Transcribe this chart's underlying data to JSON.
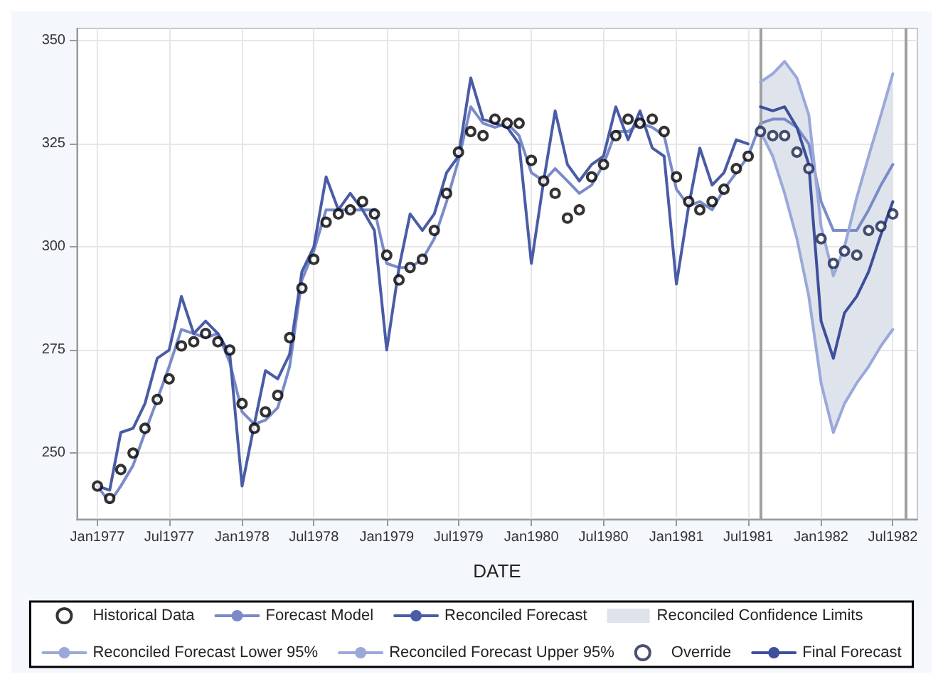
{
  "chart_data": {
    "type": "line",
    "xlabel": "DATE",
    "x": [
      "1977-01",
      "1977-02",
      "1977-03",
      "1977-04",
      "1977-05",
      "1977-06",
      "1977-07",
      "1977-08",
      "1977-09",
      "1977-10",
      "1977-11",
      "1977-12",
      "1978-01",
      "1978-02",
      "1978-03",
      "1978-04",
      "1978-05",
      "1978-06",
      "1978-07",
      "1978-08",
      "1978-09",
      "1978-10",
      "1978-11",
      "1978-12",
      "1979-01",
      "1979-02",
      "1979-03",
      "1979-04",
      "1979-05",
      "1979-06",
      "1979-07",
      "1979-08",
      "1979-09",
      "1979-10",
      "1979-11",
      "1979-12",
      "1980-01",
      "1980-02",
      "1980-03",
      "1980-04",
      "1980-05",
      "1980-06",
      "1980-07",
      "1980-08",
      "1980-09",
      "1980-10",
      "1980-11",
      "1980-12",
      "1981-01",
      "1981-02",
      "1981-03",
      "1981-04",
      "1981-05",
      "1981-06",
      "1981-07",
      "1981-08",
      "1981-09",
      "1981-10",
      "1981-11",
      "1981-12",
      "1982-01",
      "1982-02",
      "1982-03",
      "1982-04",
      "1982-05",
      "1982-06",
      "1982-07"
    ],
    "series": [
      {
        "name": "Historical Data",
        "type": "scatter",
        "marker": "circle",
        "color": "#000000",
        "values": [
          242,
          239,
          246,
          250,
          256,
          263,
          268,
          276,
          277,
          279,
          277,
          275,
          262,
          256,
          260,
          264,
          278,
          290,
          297,
          306,
          308,
          309,
          311,
          308,
          298,
          292,
          295,
          297,
          304,
          313,
          323,
          328,
          327,
          331,
          330,
          330,
          321,
          316,
          313,
          307,
          309,
          317,
          320,
          327,
          331,
          330,
          331,
          328,
          317,
          311,
          309,
          311,
          314,
          319,
          322,
          null,
          null,
          null,
          null,
          null,
          null,
          null,
          null,
          null,
          null,
          null,
          null
        ]
      },
      {
        "name": "Forecast Model",
        "color": "#7a8bc9",
        "values": [
          242,
          238,
          242,
          247,
          255,
          263,
          271,
          280,
          279,
          278,
          279,
          272,
          260,
          257,
          258,
          261,
          271,
          292,
          299,
          309,
          309,
          309,
          309,
          309,
          296,
          295,
          295,
          297,
          302,
          311,
          321,
          334,
          330,
          329,
          330,
          327,
          318,
          316,
          319,
          316,
          313,
          315,
          320,
          328,
          328,
          330,
          329,
          327,
          314,
          310,
          311,
          309,
          314,
          318,
          322,
          330,
          331,
          331,
          329,
          325,
          311,
          304,
          304,
          304,
          309,
          315,
          320
        ]
      },
      {
        "name": "Reconciled Forecast",
        "color": "#4a5ca6",
        "values": [
          242,
          241,
          255,
          256,
          262,
          273,
          275,
          288,
          279,
          282,
          279,
          274,
          242,
          257,
          270,
          268,
          274,
          294,
          300,
          317,
          309,
          313,
          309,
          304,
          275,
          295,
          308,
          304,
          308,
          318,
          322,
          341,
          331,
          330,
          329,
          325,
          296,
          316,
          333,
          320,
          316,
          320,
          322,
          334,
          326,
          333,
          324,
          322,
          291,
          310,
          324,
          315,
          318,
          326,
          325,
          null,
          null,
          null,
          null,
          null,
          null,
          null,
          null,
          null,
          null,
          null,
          null
        ]
      },
      {
        "name": "Reconciled Confidence Limits",
        "type": "area",
        "color": "#dfe4ec",
        "x": [
          "1981-08",
          "1981-09",
          "1981-10",
          "1981-11",
          "1981-12",
          "1982-01",
          "1982-02",
          "1982-03",
          "1982-04",
          "1982-05",
          "1982-06",
          "1982-07"
        ],
        "values": [
          null,
          null,
          null,
          null,
          null,
          null,
          null,
          null,
          null,
          null,
          null,
          null
        ],
        "lower": [
          328,
          322,
          313,
          302,
          288,
          267,
          255,
          262,
          267,
          271,
          276,
          280
        ],
        "upper": [
          340,
          342,
          345,
          341,
          332,
          305,
          293,
          300,
          312,
          322,
          332,
          342
        ]
      },
      {
        "name": "Reconciled Forecast Lower 95%",
        "type": "line",
        "color": "#9aa8da",
        "x": [
          "1981-08",
          "1981-09",
          "1981-10",
          "1981-11",
          "1981-12",
          "1982-01",
          "1982-02",
          "1982-03",
          "1982-04",
          "1982-05",
          "1982-06",
          "1982-07"
        ],
        "values": [
          328,
          322,
          313,
          302,
          288,
          267,
          255,
          262,
          267,
          271,
          276,
          280
        ]
      },
      {
        "name": "Reconciled Forecast Upper 95%",
        "type": "line",
        "color": "#9aa8da",
        "x": [
          "1981-08",
          "1981-09",
          "1981-10",
          "1981-11",
          "1981-12",
          "1982-01",
          "1982-02",
          "1982-03",
          "1982-04",
          "1982-05",
          "1982-06",
          "1982-07"
        ],
        "values": [
          340,
          342,
          345,
          341,
          332,
          305,
          293,
          300,
          312,
          322,
          332,
          342
        ]
      },
      {
        "name": "Override",
        "type": "scatter",
        "marker": "circle",
        "color": "#1c2550",
        "x": [
          "1981-08",
          "1981-09",
          "1981-10",
          "1981-11",
          "1981-12",
          "1982-01",
          "1982-02",
          "1982-03",
          "1982-04",
          "1982-05",
          "1982-06",
          "1982-07"
        ],
        "values": [
          328,
          327,
          327,
          323,
          319,
          302,
          296,
          299,
          298,
          304,
          305,
          308
        ]
      },
      {
        "name": "Final Forecast",
        "color": "#3e4f9c",
        "x": [
          "1981-08",
          "1981-09",
          "1981-10",
          "1981-11",
          "1981-12",
          "1982-01",
          "1982-02",
          "1982-03",
          "1982-04",
          "1982-05",
          "1982-06",
          "1982-07"
        ],
        "values": [
          334,
          333,
          334,
          329,
          320,
          282,
          273,
          284,
          288,
          294,
          303,
          311
        ]
      }
    ],
    "xlim": [
      "1976-11-10",
      "1982-09-01"
    ],
    "xticks": [
      {
        "value": "1977-01",
        "label": "Jan1977"
      },
      {
        "value": "1977-07",
        "label": "Jul1977"
      },
      {
        "value": "1978-01",
        "label": "Jan1978"
      },
      {
        "value": "1978-07",
        "label": "Jul1978"
      },
      {
        "value": "1979-01",
        "label": "Jan1979"
      },
      {
        "value": "1979-07",
        "label": "Jul1979"
      },
      {
        "value": "1980-01",
        "label": "Jan1980"
      },
      {
        "value": "1980-07",
        "label": "Jul1980"
      },
      {
        "value": "1981-01",
        "label": "Jan1981"
      },
      {
        "value": "1981-07",
        "label": "Jul1981"
      },
      {
        "value": "1982-01",
        "label": "Jan1982"
      },
      {
        "value": "1982-07",
        "label": "Jul1982"
      }
    ],
    "ylim": [
      234,
      353
    ],
    "yticks": [
      250,
      275,
      300,
      325,
      350
    ],
    "ref_lines": [
      {
        "axis": "x",
        "value": "1981-08",
        "label": null,
        "color": "#a0a0a0"
      },
      {
        "axis": "x",
        "value": "1982-08",
        "label": null,
        "color": "#a0a0a0"
      }
    ],
    "grid": true,
    "legend": "bottom",
    "marker": "none",
    "line_style": "solid"
  }
}
